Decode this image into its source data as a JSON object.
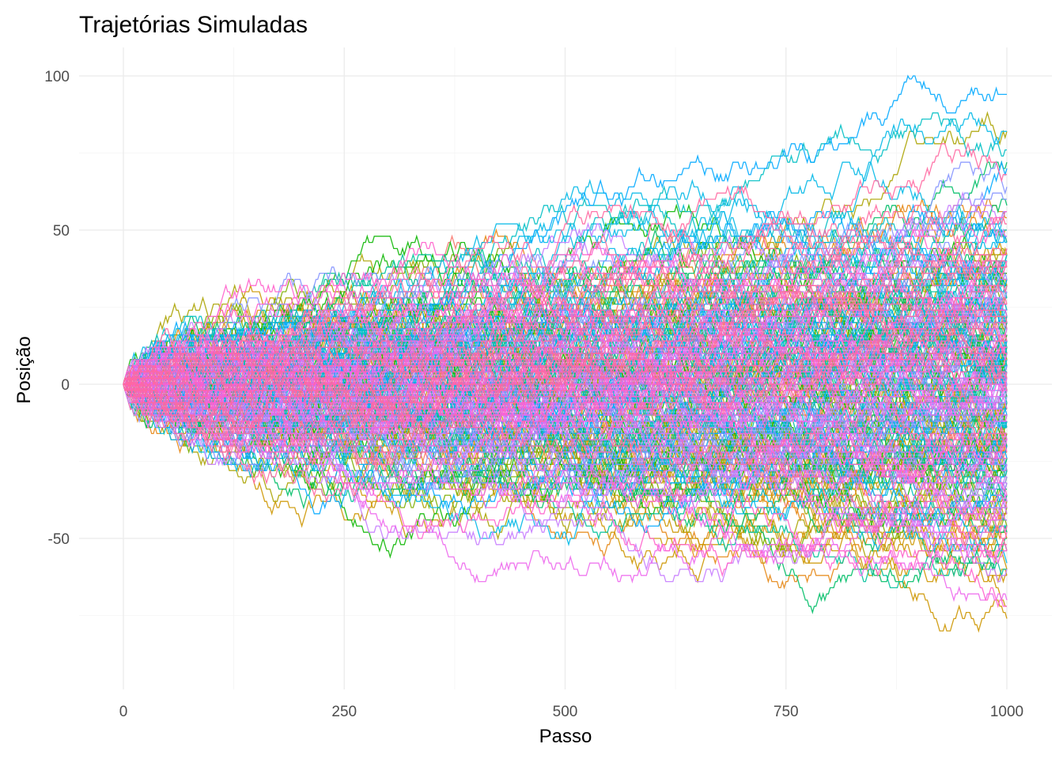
{
  "chart_data": {
    "type": "line",
    "title": "Trajetórias Simuladas",
    "xlabel": "Passo",
    "ylabel": "Posição",
    "xlim": [
      0,
      1000
    ],
    "ylim": [
      -95,
      100
    ],
    "x_ticks": [
      0,
      250,
      500,
      750,
      1000
    ],
    "x_tick_labels": [
      "0",
      "250",
      "500",
      "750",
      "1000"
    ],
    "y_ticks": [
      -50,
      0,
      50,
      100
    ],
    "y_tick_labels": [
      "-50",
      "0",
      "50",
      "100"
    ],
    "grid": true,
    "legend": "none",
    "series_description": "Simple symmetric random walks (±1 per step) starting at 0, 1000 steps each, many trajectories colored by hue",
    "series_count": 300,
    "steps": 1000,
    "start_value": 0,
    "envelope": [
      {
        "x": 0,
        "min": 0,
        "max": 0
      },
      {
        "x": 100,
        "min": -30,
        "max": 42
      },
      {
        "x": 250,
        "min": -63,
        "max": 45
      },
      {
        "x": 500,
        "min": -73,
        "max": 56
      },
      {
        "x": 750,
        "min": -80,
        "max": 84
      },
      {
        "x": 1000,
        "min": -89,
        "max": 99
      }
    ],
    "palette": [
      "#F8766D",
      "#E68613",
      "#CD9600",
      "#ABA300",
      "#7CAE00",
      "#0CB702",
      "#00BE67",
      "#00C19A",
      "#00BFC4",
      "#00B8E7",
      "#00A9FF",
      "#8494FF",
      "#C77CFF",
      "#ED68ED",
      "#FF61CC",
      "#FF68A1"
    ]
  }
}
